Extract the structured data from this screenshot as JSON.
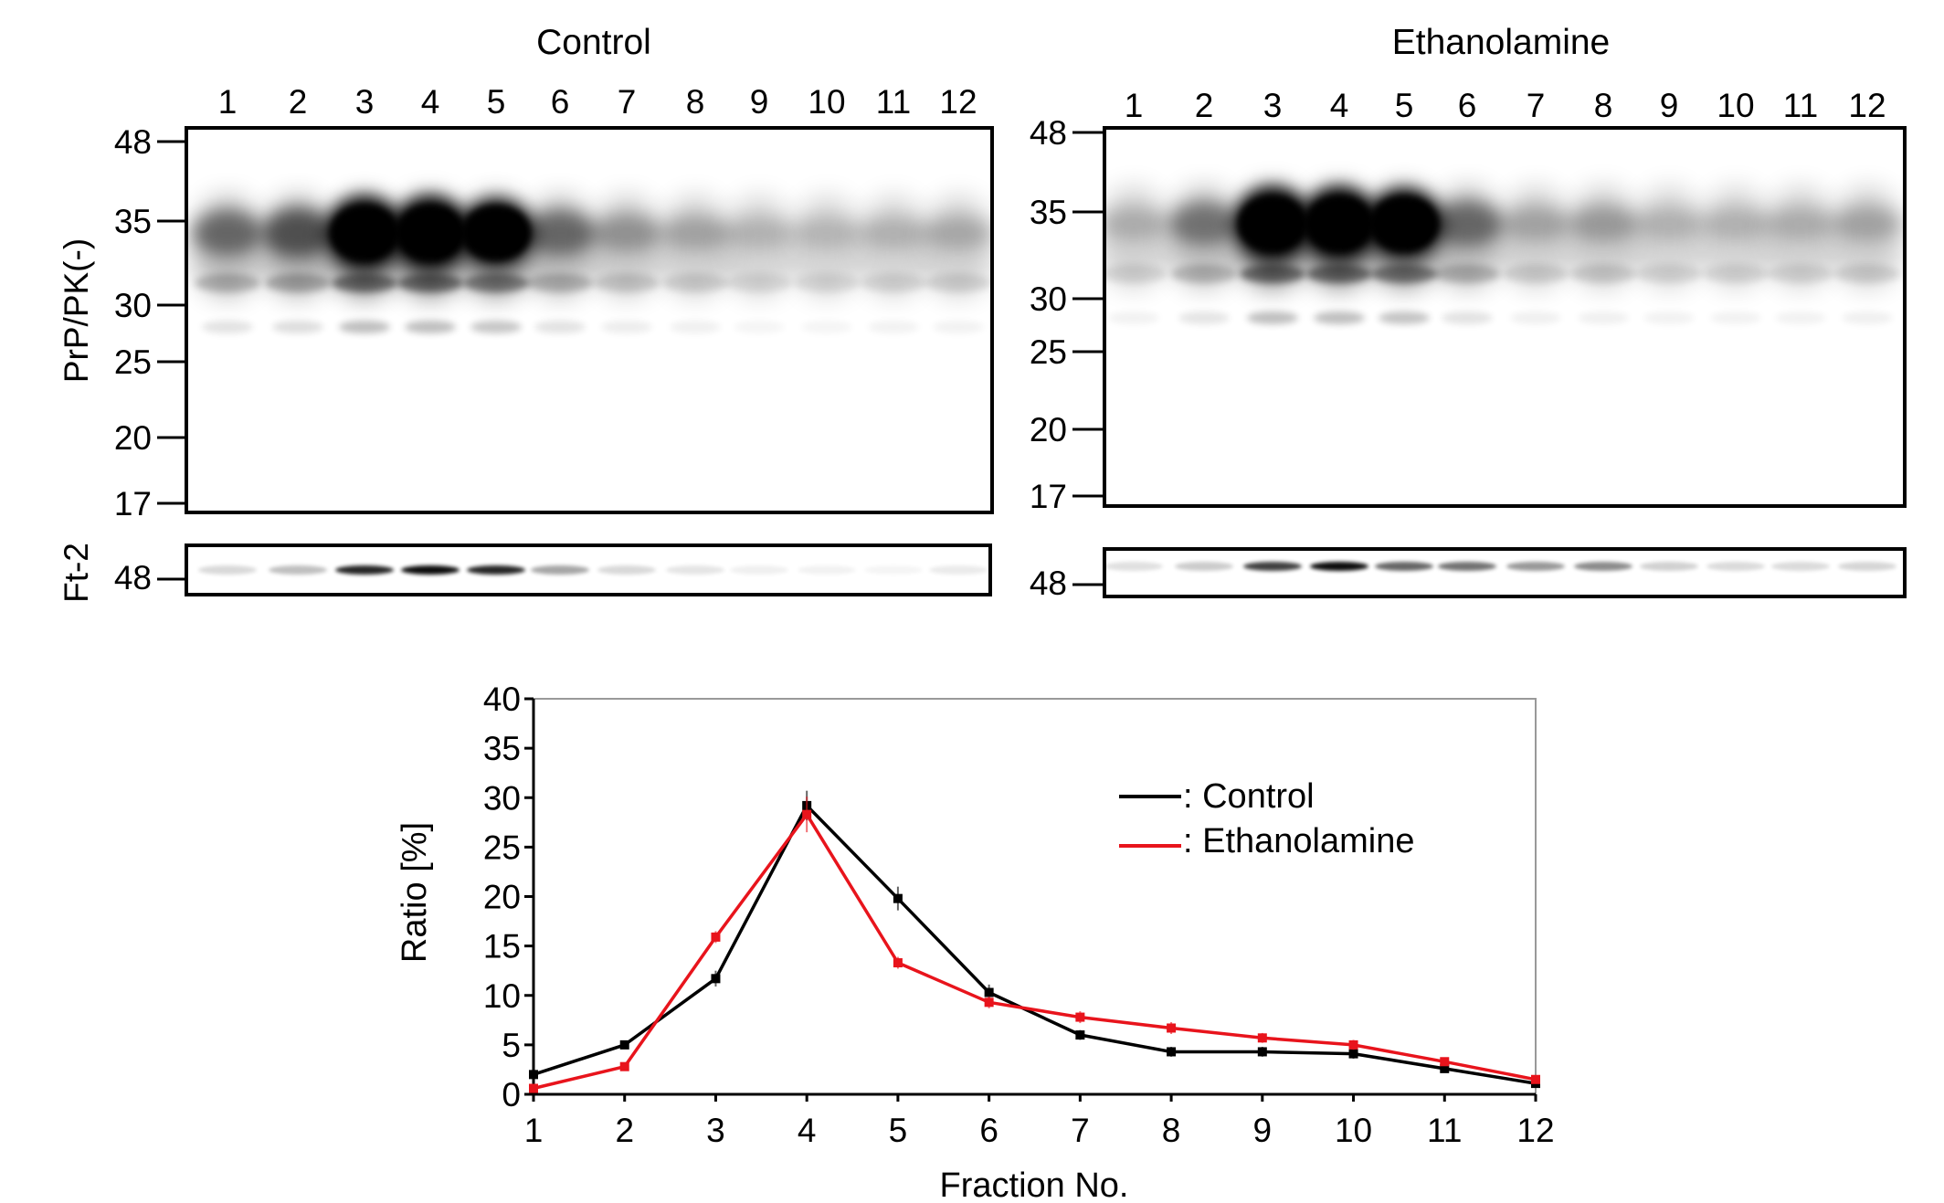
{
  "blots": [
    {
      "title": "Control",
      "lanes": [
        "1",
        "2",
        "3",
        "4",
        "5",
        "6",
        "7",
        "8",
        "9",
        "10",
        "11",
        "12"
      ],
      "mw_markers": [
        "48",
        "35",
        "30",
        "25",
        "20",
        "17"
      ],
      "side_label": "PrP/PK(-)",
      "ft2_label": "Ft-2",
      "ft2_marker": "48"
    },
    {
      "title": "Ethanolamine",
      "lanes": [
        "1",
        "2",
        "3",
        "4",
        "5",
        "6",
        "7",
        "8",
        "9",
        "10",
        "11",
        "12"
      ],
      "mw_markers": [
        "48",
        "35",
        "30",
        "25",
        "20",
        "17"
      ],
      "ft2_marker": "48"
    }
  ],
  "chart_data": {
    "type": "line",
    "x": [
      1,
      2,
      3,
      4,
      5,
      6,
      7,
      8,
      9,
      10,
      11,
      12
    ],
    "xticks": [
      "1",
      "2",
      "3",
      "4",
      "5",
      "6",
      "7",
      "8",
      "9",
      "10",
      "11",
      "12"
    ],
    "yticks": [
      "0",
      "5",
      "10",
      "15",
      "20",
      "25",
      "30",
      "35",
      "40"
    ],
    "xlabel": "Fraction No.",
    "ylabel": "Ratio [%]",
    "xlim": [
      1,
      12
    ],
    "ylim": [
      0,
      40
    ],
    "legend_position": "top-right",
    "series": [
      {
        "name": ": Control",
        "color": "#000000",
        "values": [
          2.0,
          5.0,
          11.7,
          29.2,
          19.8,
          10.3,
          6.0,
          4.3,
          4.3,
          4.1,
          2.6,
          1.1
        ],
        "errors": [
          0.3,
          0.4,
          0.8,
          1.5,
          1.2,
          0.8,
          0.5,
          0.5,
          0.5,
          0.5,
          0.4,
          0.3
        ]
      },
      {
        "name": ": Ethanolamine",
        "color": "#e8141c",
        "values": [
          0.6,
          2.8,
          15.9,
          28.3,
          13.3,
          9.3,
          7.8,
          6.7,
          5.7,
          5.0,
          3.3,
          1.5
        ],
        "errors": [
          0.3,
          0.4,
          0.6,
          1.8,
          0.6,
          0.6,
          0.6,
          0.6,
          0.5,
          0.5,
          0.4,
          0.3
        ]
      }
    ]
  }
}
